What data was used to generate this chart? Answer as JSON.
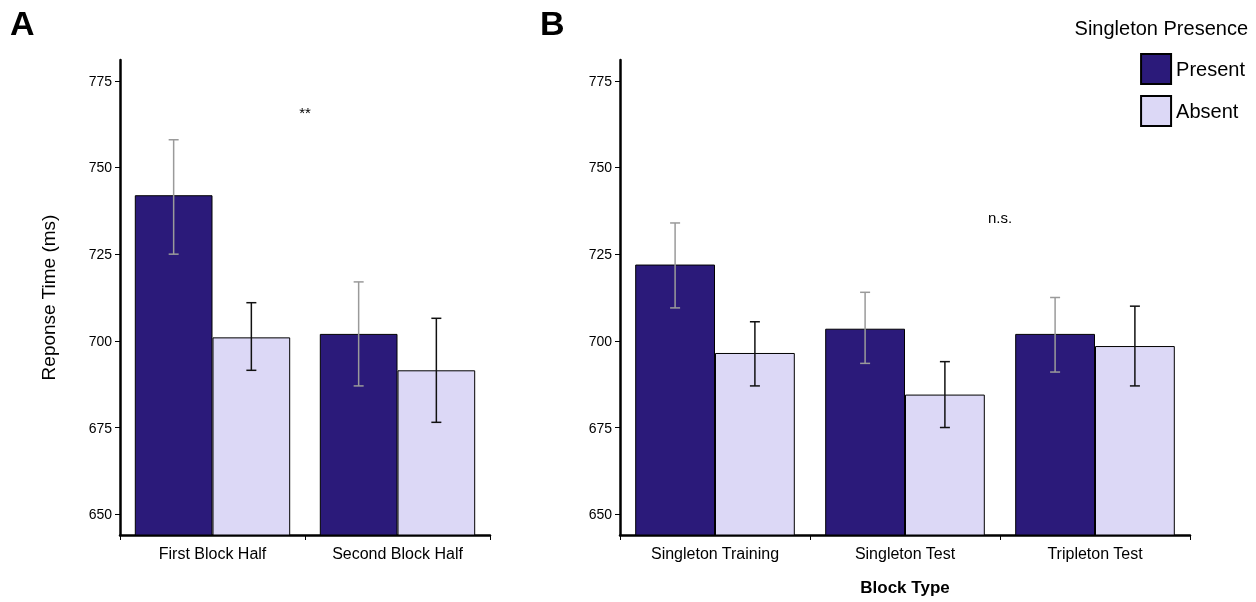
{
  "chart_data": [
    {
      "type": "bar",
      "title": "A",
      "ylabel": "Reponse Time (ms)",
      "categories": [
        "First Block Half",
        "Second Block Half"
      ],
      "series": [
        {
          "color": "#2b1a7a",
          "values": [
            742,
            702
          ],
          "errors": [
            [
              725,
              758
            ],
            [
              687,
              717
            ]
          ]
        },
        {
          "color": "#dcd8f6",
          "values": [
            701,
            691.5
          ],
          "errors": [
            [
              691.5,
              711
            ],
            [
              676.5,
              706.5
            ]
          ]
        }
      ],
      "ylim": [
        644,
        781
      ],
      "yticks": [
        650,
        675,
        700,
        725,
        750,
        775
      ],
      "grid": false,
      "legend": false,
      "annotations": [
        "**"
      ]
    },
    {
      "type": "bar",
      "title": "B",
      "xlabel": "Block Type",
      "legend_title": "Singleton Presence",
      "categories": [
        "Singleton Training",
        "Singleton Test",
        "Tripleton Test"
      ],
      "series": [
        {
          "name": "Present",
          "color": "#2b1a7a",
          "values": [
            722,
            703.5,
            702
          ],
          "errors": [
            [
              709.5,
              734
            ],
            [
              693.5,
              714
            ],
            [
              691,
              712.5
            ]
          ]
        },
        {
          "name": "Absent",
          "color": "#dcd8f6",
          "values": [
            696.5,
            684.5,
            698.5
          ],
          "errors": [
            [
              687,
              705.5
            ],
            [
              675,
              694
            ],
            [
              687,
              710
            ]
          ]
        }
      ],
      "ylim": [
        644,
        781
      ],
      "yticks": [
        650,
        675,
        700,
        725,
        750,
        775
      ],
      "grid": false,
      "legend": "top right",
      "annotations": [
        "n.s."
      ]
    }
  ]
}
